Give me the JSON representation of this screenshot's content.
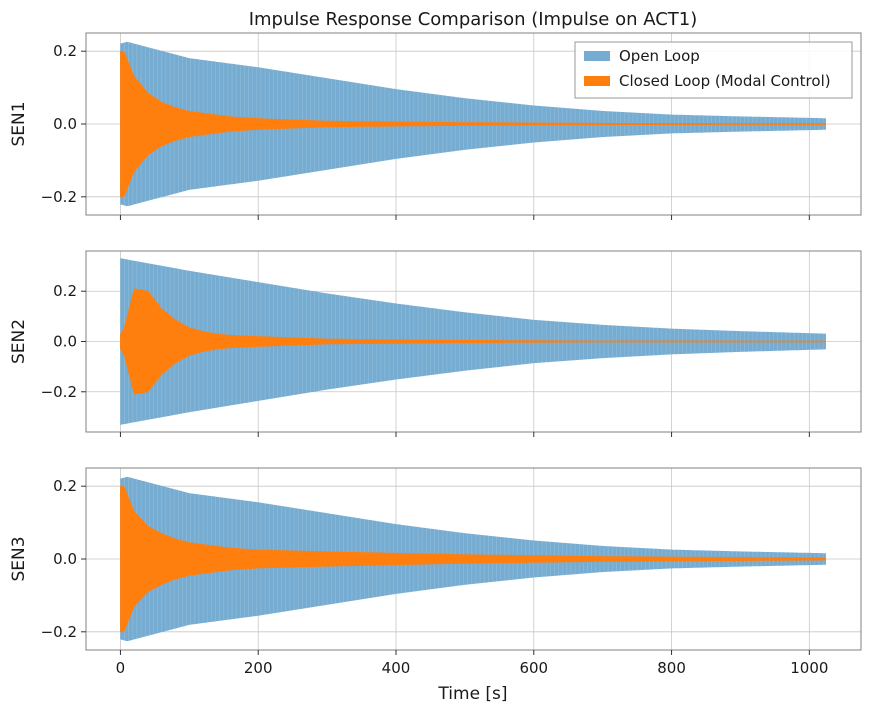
{
  "chart_data": {
    "type": "line",
    "title": "Impulse Response Comparison (Impulse on ACT1)",
    "xlabel": "Time [s]",
    "xlim": [
      -50,
      1075
    ],
    "xticks": [
      0,
      200,
      400,
      600,
      800,
      1000
    ],
    "x_tick_labels": [
      "0",
      "200",
      "400",
      "600",
      "800",
      "1000"
    ],
    "legend": {
      "placement": "upper right",
      "entries": [
        "Open Loop",
        "Closed Loop (Modal Control)"
      ]
    },
    "colors": {
      "open_loop": "#76acd1",
      "closed_loop": "#ff7f0e"
    },
    "grid": true,
    "panels": [
      {
        "ylabel": "SEN1",
        "ylim": [
          -0.25,
          0.25
        ],
        "yticks": [
          -0.2,
          0.0,
          0.2
        ],
        "y_tick_labels": [
          "−0.2",
          "0.0",
          "0.2"
        ],
        "series": [
          {
            "name": "Open Loop",
            "x": [
              0,
              10,
              100,
              200,
              300,
              400,
              500,
              600,
              700,
              800,
              900,
              1024
            ],
            "envelope": [
              0.22,
              0.225,
              0.18,
              0.155,
              0.125,
              0.095,
              0.07,
              0.05,
              0.035,
              0.025,
              0.02,
              0.015
            ]
          },
          {
            "name": "Closed Loop (Modal Control)",
            "x": [
              0,
              5,
              20,
              40,
              60,
              80,
              100,
              120,
              140,
              160,
              200,
              300,
              500,
              700,
              1024
            ],
            "envelope": [
              0.2,
              0.2,
              0.13,
              0.085,
              0.06,
              0.045,
              0.035,
              0.03,
              0.025,
              0.02,
              0.015,
              0.008,
              0.004,
              0.002,
              0.001
            ]
          }
        ]
      },
      {
        "ylabel": "SEN2",
        "ylim": [
          -0.36,
          0.36
        ],
        "yticks": [
          -0.2,
          0.0,
          0.2
        ],
        "y_tick_labels": [
          "−0.2",
          "0.0",
          "0.2"
        ],
        "series": [
          {
            "name": "Open Loop",
            "x": [
              0,
              10,
              100,
              200,
              300,
              400,
              500,
              600,
              700,
              800,
              900,
              1024
            ],
            "envelope": [
              0.33,
              0.325,
              0.28,
              0.235,
              0.19,
              0.15,
              0.115,
              0.085,
              0.065,
              0.05,
              0.04,
              0.03
            ]
          },
          {
            "name": "Closed Loop (Modal Control)",
            "x": [
              0,
              5,
              20,
              40,
              60,
              80,
              100,
              120,
              140,
              160,
              200,
              300,
              500,
              700,
              1024
            ],
            "envelope": [
              0.03,
              0.05,
              0.21,
              0.2,
              0.13,
              0.085,
              0.055,
              0.04,
              0.03,
              0.025,
              0.02,
              0.01,
              0.005,
              0.002,
              0.001
            ]
          }
        ]
      },
      {
        "ylabel": "SEN3",
        "ylim": [
          -0.25,
          0.25
        ],
        "yticks": [
          -0.2,
          0.0,
          0.2
        ],
        "y_tick_labels": [
          "−0.2",
          "0.0",
          "0.2"
        ],
        "series": [
          {
            "name": "Open Loop",
            "x": [
              0,
              10,
              100,
              200,
              300,
              400,
              500,
              600,
              700,
              800,
              900,
              1024
            ],
            "envelope": [
              0.22,
              0.225,
              0.18,
              0.155,
              0.125,
              0.095,
              0.07,
              0.05,
              0.035,
              0.025,
              0.02,
              0.015
            ]
          },
          {
            "name": "Closed Loop (Modal Control)",
            "x": [
              0,
              5,
              20,
              40,
              60,
              80,
              100,
              120,
              140,
              160,
              200,
              300,
              500,
              700,
              1024
            ],
            "envelope": [
              0.2,
              0.2,
              0.13,
              0.09,
              0.07,
              0.055,
              0.045,
              0.04,
              0.035,
              0.03,
              0.025,
              0.02,
              0.012,
              0.007,
              0.003
            ]
          }
        ]
      }
    ]
  }
}
